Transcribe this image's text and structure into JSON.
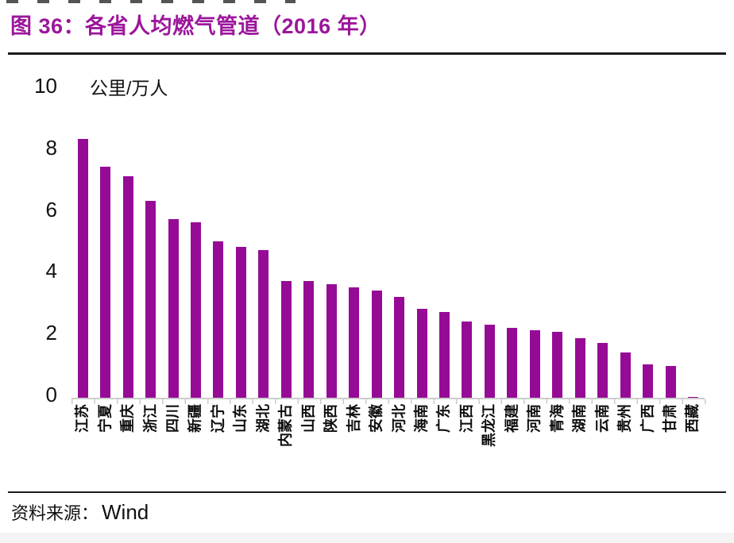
{
  "title": "图 36：各省人均燃气管道（2016 年）",
  "y_axis": {
    "unit_label": "公里/万人",
    "ticks": [
      0,
      2,
      4,
      6,
      8,
      10
    ]
  },
  "source": {
    "label": "资料来源：",
    "value": "Wind"
  },
  "colors": {
    "bar": "#960b96",
    "title": "#9c169c",
    "axis_line": "#cccccc",
    "rule": "#1b1b1b"
  },
  "chart_data": {
    "type": "bar",
    "title": "图 36：各省人均燃气管道（2016 年）",
    "unit": "公里/万人",
    "categories": [
      "江苏",
      "宁夏",
      "重庆",
      "浙江",
      "四川",
      "新疆",
      "辽宁",
      "山东",
      "湖北",
      "内蒙古",
      "山西",
      "陕西",
      "吉林",
      "安徽",
      "河北",
      "海南",
      "广东",
      "江西",
      "黑龙江",
      "福建",
      "河南",
      "青海",
      "湖南",
      "云南",
      "贵州",
      "广西",
      "甘肃",
      "西藏"
    ],
    "values": [
      8.4,
      7.5,
      7.2,
      6.4,
      5.8,
      5.7,
      5.1,
      4.9,
      4.8,
      3.8,
      3.8,
      3.7,
      3.6,
      3.5,
      3.3,
      2.9,
      2.8,
      2.5,
      2.4,
      2.3,
      2.2,
      2.15,
      1.95,
      1.8,
      1.5,
      1.1,
      1.05,
      0.05
    ],
    "ylim": [
      0,
      10
    ],
    "grid": false,
    "legend": false,
    "bar_color": "#960b96",
    "x_label_rotation": -90
  }
}
